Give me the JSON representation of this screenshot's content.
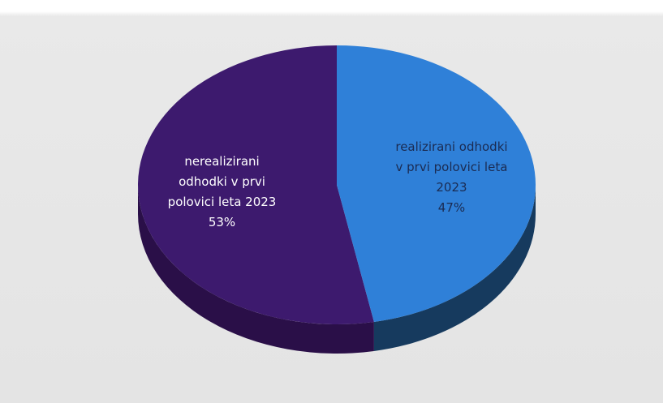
{
  "chart_data": {
    "type": "pie",
    "categories": [
      "nerealizirani odhodki v prvi polovici leta 2023",
      "realizirani odhodki v prvi polovici leta 2023"
    ],
    "values": [
      53,
      47
    ],
    "value_labels": [
      "53%",
      "47%"
    ],
    "colors": [
      "#3d1a6e",
      "#2f80d8"
    ],
    "side_colors": [
      "#2a0f48",
      "#163a5e"
    ],
    "start_angle": 0,
    "direction": "counterclockwise"
  }
}
